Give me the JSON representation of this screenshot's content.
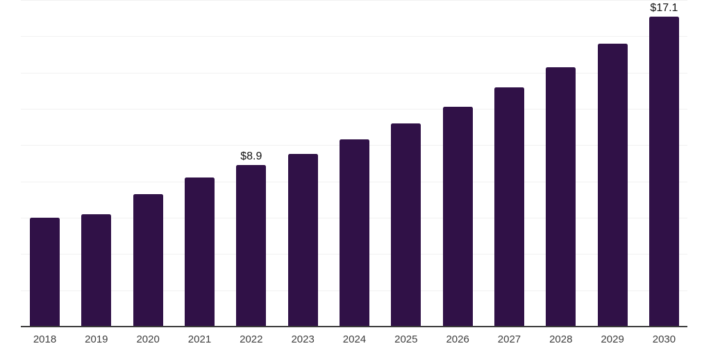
{
  "chart_data": {
    "type": "bar",
    "title": "",
    "xlabel": "",
    "ylabel": "",
    "categories": [
      "2018",
      "2019",
      "2020",
      "2021",
      "2022",
      "2023",
      "2024",
      "2025",
      "2026",
      "2027",
      "2028",
      "2029",
      "2030"
    ],
    "values": [
      6.0,
      6.2,
      7.3,
      8.2,
      8.9,
      9.5,
      10.3,
      11.2,
      12.1,
      13.2,
      14.3,
      15.6,
      17.1
    ],
    "data_labels": {
      "2022": "$8.9",
      "2030": "$17.1"
    },
    "value_prefix": "$",
    "ylim": [
      0,
      18
    ],
    "gridline_step": 2,
    "grid": true,
    "legend": "none",
    "colors": {
      "bar": "#301147",
      "gridline": "#f1f1f1",
      "axis_line": "#3a3a3a",
      "data_label": "#111111",
      "tick_label": "#3d3d3d",
      "background": "#ffffff"
    }
  }
}
